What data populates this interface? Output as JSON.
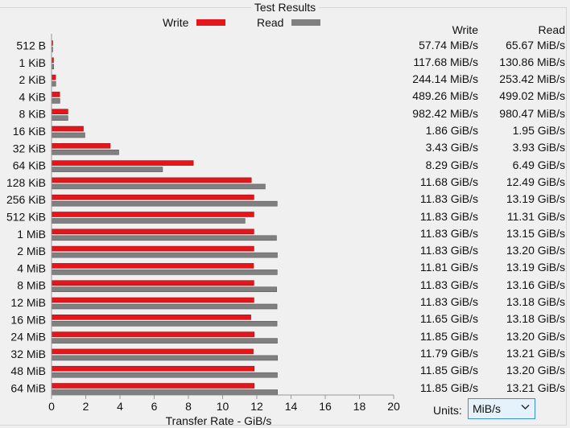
{
  "window": {
    "title": "Test Results"
  },
  "legend": {
    "write_label": "Write",
    "read_label": "Read"
  },
  "colors": {
    "write": "#e4161b",
    "read": "#808080",
    "axis": "#999999",
    "grid": "#cfcfcf"
  },
  "table": {
    "write_header": "Write",
    "read_header": "Read",
    "rows": [
      {
        "write": "57.74 MiB/s",
        "read": "65.67 MiB/s"
      },
      {
        "write": "117.68 MiB/s",
        "read": "130.86 MiB/s"
      },
      {
        "write": "244.14 MiB/s",
        "read": "253.42 MiB/s"
      },
      {
        "write": "489.26 MiB/s",
        "read": "499.02 MiB/s"
      },
      {
        "write": "982.42 MiB/s",
        "read": "980.47 MiB/s"
      },
      {
        "write": "1.86 GiB/s",
        "read": "1.95 GiB/s"
      },
      {
        "write": "3.43 GiB/s",
        "read": "3.93 GiB/s"
      },
      {
        "write": "8.29 GiB/s",
        "read": "6.49 GiB/s"
      },
      {
        "write": "11.68 GiB/s",
        "read": "12.49 GiB/s"
      },
      {
        "write": "11.83 GiB/s",
        "read": "13.19 GiB/s"
      },
      {
        "write": "11.83 GiB/s",
        "read": "11.31 GiB/s"
      },
      {
        "write": "11.83 GiB/s",
        "read": "13.15 GiB/s"
      },
      {
        "write": "11.83 GiB/s",
        "read": "13.20 GiB/s"
      },
      {
        "write": "11.81 GiB/s",
        "read": "13.19 GiB/s"
      },
      {
        "write": "11.83 GiB/s",
        "read": "13.16 GiB/s"
      },
      {
        "write": "11.83 GiB/s",
        "read": "13.18 GiB/s"
      },
      {
        "write": "11.65 GiB/s",
        "read": "13.18 GiB/s"
      },
      {
        "write": "11.85 GiB/s",
        "read": "13.20 GiB/s"
      },
      {
        "write": "11.79 GiB/s",
        "read": "13.21 GiB/s"
      },
      {
        "write": "11.85 GiB/s",
        "read": "13.20 GiB/s"
      },
      {
        "write": "11.85 GiB/s",
        "read": "13.21 GiB/s"
      }
    ]
  },
  "units": {
    "label": "Units:",
    "selected": "MiB/s",
    "icon": "chevron-down-icon"
  },
  "chart_data": {
    "type": "bar",
    "orientation": "horizontal",
    "xlabel": "Transfer Rate - GiB/s",
    "xlim": [
      0,
      20
    ],
    "xticks": [
      0,
      2,
      4,
      6,
      8,
      10,
      12,
      14,
      16,
      18,
      20
    ],
    "grid": false,
    "legend_position": "top",
    "categories": [
      "512 B",
      "1 KiB",
      "2 KiB",
      "4 KiB",
      "8 KiB",
      "16 KiB",
      "32 KiB",
      "64 KiB",
      "128 KiB",
      "256 KiB",
      "512 KiB",
      "1 MiB",
      "2 MiB",
      "4 MiB",
      "8 MiB",
      "12 MiB",
      "16 MiB",
      "24 MiB",
      "32 MiB",
      "48 MiB",
      "64 MiB"
    ],
    "series": [
      {
        "name": "Write",
        "values": [
          0.0564,
          0.1149,
          0.2384,
          0.4778,
          0.9594,
          1.86,
          3.43,
          8.29,
          11.68,
          11.83,
          11.83,
          11.83,
          11.83,
          11.81,
          11.83,
          11.83,
          11.65,
          11.85,
          11.79,
          11.85,
          11.85
        ]
      },
      {
        "name": "Read",
        "values": [
          0.0641,
          0.1278,
          0.2475,
          0.4873,
          0.9575,
          1.95,
          3.93,
          6.49,
          12.49,
          13.19,
          11.31,
          13.15,
          13.2,
          13.19,
          13.16,
          13.18,
          13.18,
          13.2,
          13.21,
          13.2,
          13.21
        ]
      }
    ]
  }
}
